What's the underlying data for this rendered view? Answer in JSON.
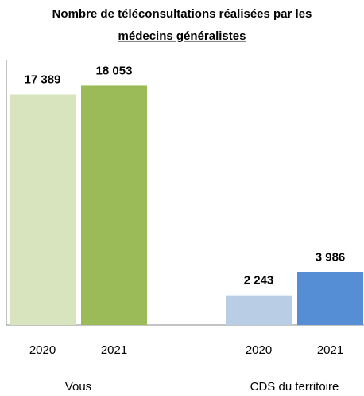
{
  "chart_data": {
    "type": "bar",
    "title": [
      "Nombre de téléconsultations réalisées par les",
      "médecins généralistes"
    ],
    "categories": [
      "Vous",
      "CDS du territoire"
    ],
    "series": [
      {
        "name": "2020",
        "colors": [
          "#d7e4bd",
          "#b9cde5"
        ],
        "values": [
          17389,
          2243
        ],
        "value_labels": [
          "17 389",
          "2 243"
        ]
      },
      {
        "name": "2021",
        "colors": [
          "#9bbb59",
          "#558ed5"
        ],
        "values": [
          18053,
          3986
        ],
        "value_labels": [
          "18 053",
          "3 986"
        ]
      }
    ],
    "ylim": [
      0,
      20000
    ]
  }
}
